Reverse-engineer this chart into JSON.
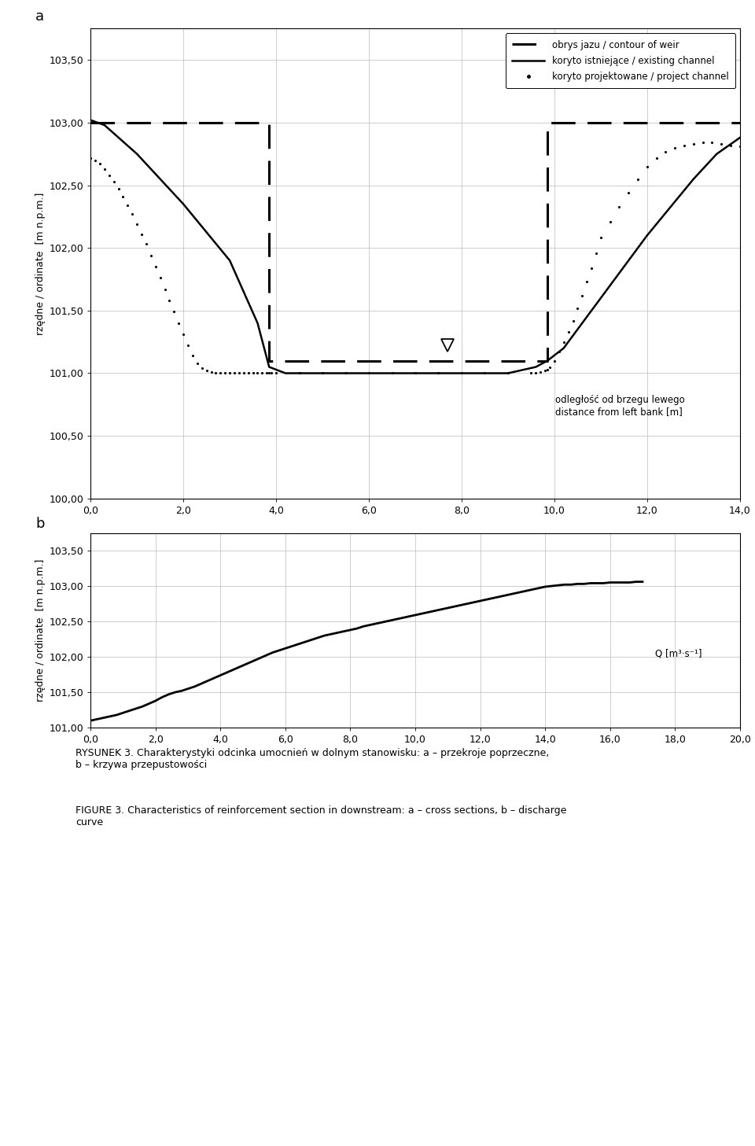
{
  "panel_a": {
    "ylabel": "rzędne / ordinate  [m n.p.m.]",
    "xlabel_text": "odległość od brzegu lewego\ndistance from left bank [m]",
    "xlim": [
      0.0,
      14.0
    ],
    "ylim": [
      100.0,
      103.75
    ],
    "xticks": [
      0.0,
      2.0,
      4.0,
      6.0,
      8.0,
      10.0,
      12.0,
      14.0
    ],
    "yticks": [
      100.0,
      100.5,
      101.0,
      101.5,
      102.0,
      102.5,
      103.0,
      103.5
    ],
    "ytick_labels": [
      "100,00",
      "100,50",
      "101,00",
      "101,50",
      "102,00",
      "102,50",
      "103,00",
      "103,50"
    ],
    "xtick_labels": [
      "0,0",
      "2,0",
      "4,0",
      "6,0",
      "8,0",
      "10,0",
      "12,0",
      "14,0"
    ],
    "weir_x": [
      0.0,
      3.85,
      3.85,
      9.85,
      9.85,
      14.0
    ],
    "weir_y": [
      103.0,
      103.0,
      101.1,
      101.1,
      103.0,
      103.0
    ],
    "channel_x": [
      0.0,
      0.3,
      1.0,
      2.0,
      3.0,
      3.6,
      3.85,
      4.2,
      5.0,
      6.0,
      7.0,
      7.5,
      8.0,
      8.5,
      9.0,
      9.6,
      9.85,
      10.2,
      11.0,
      12.0,
      13.0,
      13.5,
      14.0
    ],
    "channel_y": [
      103.02,
      102.98,
      102.75,
      102.35,
      101.9,
      101.4,
      101.05,
      101.0,
      101.0,
      101.0,
      101.0,
      101.0,
      101.0,
      101.0,
      101.0,
      101.05,
      101.1,
      101.2,
      101.6,
      102.1,
      102.55,
      102.75,
      102.88
    ],
    "project_x_dense": [
      0.0,
      0.1,
      0.2,
      0.3,
      0.4,
      0.5,
      0.6,
      0.7,
      0.8,
      0.9,
      1.0,
      1.1,
      1.2,
      1.3,
      1.4,
      1.5,
      1.6,
      1.7,
      1.8,
      1.9,
      2.0,
      2.1,
      2.2,
      2.3,
      2.4,
      2.5,
      2.6,
      2.7,
      2.8,
      2.9,
      3.0,
      3.1,
      3.2,
      3.3,
      3.4,
      3.5,
      3.6,
      3.7,
      3.8,
      3.85,
      3.9,
      4.0,
      4.5,
      5.0,
      5.5,
      6.0,
      6.5,
      7.0,
      7.5,
      8.0,
      8.5,
      9.0,
      9.5,
      9.6,
      9.7,
      9.8,
      9.85,
      9.9,
      10.0,
      10.1,
      10.2,
      10.3,
      10.4,
      10.5,
      10.6,
      10.7,
      10.8,
      10.9,
      11.0,
      11.2,
      11.4,
      11.6,
      11.8,
      12.0,
      12.2,
      12.4,
      12.6,
      12.8,
      13.0,
      13.2,
      13.4,
      13.6,
      13.8,
      14.0
    ],
    "project_y_dense": [
      102.72,
      102.7,
      102.67,
      102.63,
      102.58,
      102.53,
      102.47,
      102.41,
      102.34,
      102.27,
      102.19,
      102.11,
      102.03,
      101.94,
      101.85,
      101.76,
      101.67,
      101.58,
      101.49,
      101.4,
      101.31,
      101.22,
      101.14,
      101.08,
      101.04,
      101.02,
      101.01,
      101.0,
      101.0,
      101.0,
      101.0,
      101.0,
      101.0,
      101.0,
      101.0,
      101.0,
      101.0,
      101.0,
      101.0,
      101.0,
      101.0,
      101.0,
      101.0,
      101.0,
      101.0,
      101.0,
      101.0,
      101.0,
      101.0,
      101.0,
      101.0,
      101.0,
      101.0,
      101.0,
      101.01,
      101.02,
      101.03,
      101.05,
      101.1,
      101.17,
      101.25,
      101.33,
      101.42,
      101.52,
      101.62,
      101.73,
      101.84,
      101.96,
      102.08,
      102.21,
      102.33,
      102.44,
      102.55,
      102.65,
      102.72,
      102.77,
      102.8,
      102.82,
      102.83,
      102.84,
      102.84,
      102.83,
      102.82,
      102.81
    ],
    "triangle_x": 7.7,
    "triangle_y": 101.22,
    "legend_labels": [
      "obrys jazu / contour of weir",
      "koryto istniejące / existing channel",
      "koryto projektowane / project channel"
    ]
  },
  "panel_b": {
    "ylabel": "rzędne / ordinate  [m n.p.m.]",
    "xlabel_label": "Q [m³·s⁻¹]",
    "xlim": [
      0.0,
      20.0
    ],
    "ylim": [
      101.0,
      103.75
    ],
    "xticks": [
      0.0,
      2.0,
      4.0,
      6.0,
      8.0,
      10.0,
      12.0,
      14.0,
      16.0,
      18.0,
      20.0
    ],
    "yticks": [
      101.0,
      101.5,
      102.0,
      102.5,
      103.0,
      103.5
    ],
    "ytick_labels": [
      "101,00",
      "101,50",
      "102,00",
      "102,50",
      "103,00",
      "103,50"
    ],
    "xtick_labels": [
      "0,0",
      "2,0",
      "4,0",
      "6,0",
      "8,0",
      "10,0",
      "12,0",
      "14,0",
      "16,0",
      "18,0",
      "20,0"
    ],
    "curve_x": [
      0.0,
      0.2,
      0.4,
      0.6,
      0.8,
      1.0,
      1.2,
      1.4,
      1.6,
      1.8,
      2.0,
      2.2,
      2.4,
      2.6,
      2.8,
      3.0,
      3.2,
      3.4,
      3.6,
      3.8,
      4.0,
      4.2,
      4.4,
      4.6,
      4.8,
      5.0,
      5.2,
      5.4,
      5.6,
      5.8,
      6.0,
      6.2,
      6.4,
      6.6,
      6.8,
      7.0,
      7.2,
      7.4,
      7.6,
      7.8,
      8.0,
      8.2,
      8.4,
      8.6,
      8.8,
      9.0,
      9.2,
      9.4,
      9.6,
      9.8,
      10.0,
      10.2,
      10.4,
      10.6,
      10.8,
      11.0,
      11.2,
      11.4,
      11.6,
      11.8,
      12.0,
      12.2,
      12.4,
      12.6,
      12.8,
      13.0,
      13.2,
      13.4,
      13.6,
      13.8,
      14.0,
      14.2,
      14.4,
      14.6,
      14.8,
      15.0,
      15.2,
      15.4,
      15.6,
      15.8,
      16.0,
      16.2,
      16.4,
      16.6,
      16.8,
      17.0
    ],
    "curve_y": [
      101.1,
      101.12,
      101.14,
      101.16,
      101.18,
      101.21,
      101.24,
      101.27,
      101.3,
      101.34,
      101.38,
      101.43,
      101.47,
      101.5,
      101.52,
      101.55,
      101.58,
      101.62,
      101.66,
      101.7,
      101.74,
      101.78,
      101.82,
      101.86,
      101.9,
      101.94,
      101.98,
      102.02,
      102.06,
      102.09,
      102.12,
      102.15,
      102.18,
      102.21,
      102.24,
      102.27,
      102.3,
      102.32,
      102.34,
      102.36,
      102.38,
      102.4,
      102.43,
      102.45,
      102.47,
      102.49,
      102.51,
      102.53,
      102.55,
      102.57,
      102.59,
      102.61,
      102.63,
      102.65,
      102.67,
      102.69,
      102.71,
      102.73,
      102.75,
      102.77,
      102.79,
      102.81,
      102.83,
      102.85,
      102.87,
      102.89,
      102.91,
      102.93,
      102.95,
      102.97,
      102.99,
      103.0,
      103.01,
      103.02,
      103.02,
      103.03,
      103.03,
      103.04,
      103.04,
      103.04,
      103.05,
      103.05,
      103.05,
      103.05,
      103.06,
      103.06
    ]
  },
  "caption_pl": "RYSUNEK 3. Charakterystyki odcinka umocnień w dolnym stanowisku: a – przekroje poprzeczne,\nb – krzywa przepustowości",
  "caption_en": "FIGURE 3. Characteristics of reinforcement section in downstream: a – cross sections, b – discharge\ncurve",
  "line_color": "#000000",
  "bg_color": "#ffffff",
  "grid_color": "#bbbbbb",
  "font_size": 9
}
